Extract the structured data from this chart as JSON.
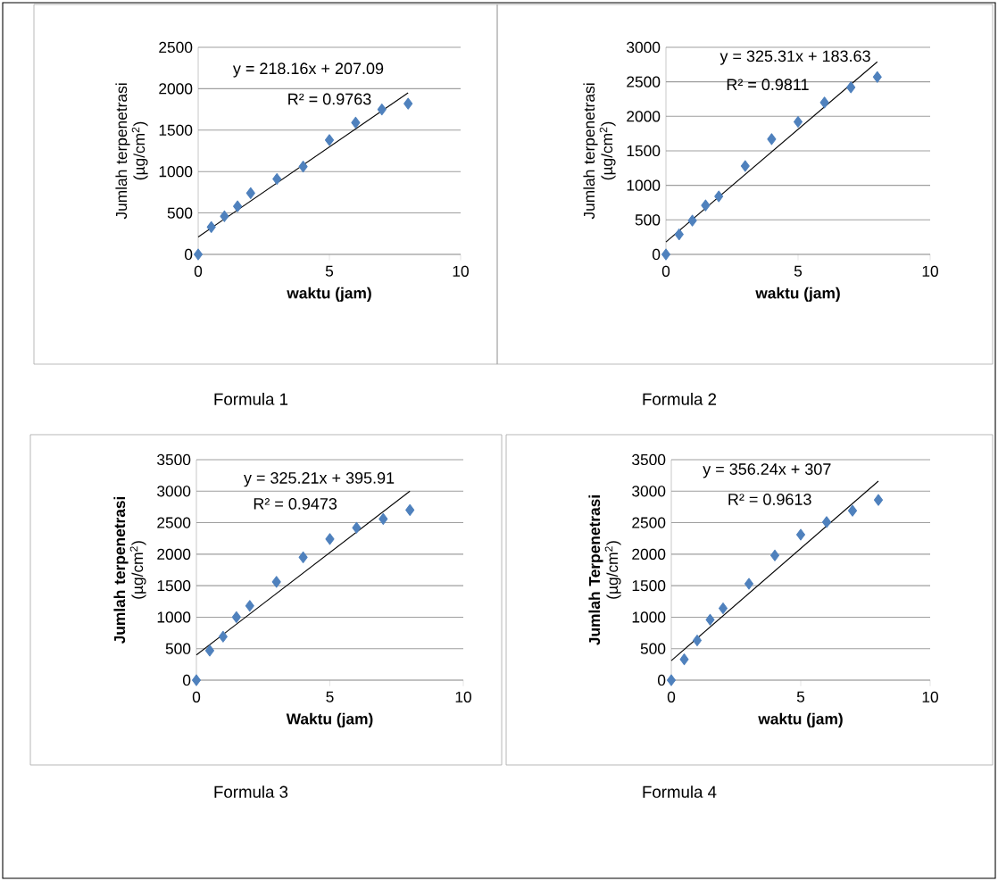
{
  "chart_data": [
    {
      "type": "scatter",
      "title": "Formula 1",
      "xlabel": "waktu (jam)",
      "ylabel": "Jumlah terpenetrasi (µg/cm$^{2}$)",
      "xlim": [
        0,
        10
      ],
      "ylim": [
        0,
        2500
      ],
      "xticks": [
        0,
        5,
        10
      ],
      "yticks": [
        0,
        500,
        1000,
        1500,
        2000,
        2500
      ],
      "grid": "y",
      "marker": "diamond",
      "annotations": [
        "y = 218.16x + 207.09",
        "R² = 0.9763"
      ],
      "series": [
        {
          "color": "#4f81bd",
          "x": [
            0,
            0.5,
            1,
            1.5,
            2,
            3,
            4,
            5,
            6,
            7,
            8
          ],
          "values": [
            0,
            330,
            460,
            580,
            740,
            910,
            1060,
            1380,
            1590,
            1750,
            1820
          ]
        },
        {
          "type": "line",
          "color": "#000000",
          "marker": "none",
          "x": [
            0,
            8
          ],
          "values": [
            210,
            1950
          ]
        }
      ]
    },
    {
      "type": "scatter",
      "title": "Formula 2",
      "xlabel": "waktu (jam)",
      "ylabel": "Jumlah terpenetrasi (µg/cm$^{2}$)",
      "xlim": [
        0,
        10
      ],
      "ylim": [
        0,
        3000
      ],
      "xticks": [
        0,
        5,
        10
      ],
      "yticks": [
        0,
        500,
        1000,
        1500,
        2000,
        2500,
        3000
      ],
      "grid": "y",
      "marker": "diamond",
      "annotations": [
        "y = 325.31x + 183.63",
        "R² = 0.9811"
      ],
      "series": [
        {
          "color": "#4f81bd",
          "x": [
            0,
            0.5,
            1,
            1.5,
            2,
            3,
            4,
            5,
            6,
            7,
            8
          ],
          "values": [
            0,
            290,
            490,
            710,
            840,
            1280,
            1670,
            1920,
            2200,
            2420,
            2570
          ]
        },
        {
          "type": "line",
          "color": "#000000",
          "marker": "none",
          "x": [
            0,
            8
          ],
          "values": [
            180,
            2790
          ]
        }
      ]
    },
    {
      "type": "scatter",
      "title": "Formula 3",
      "xlabel": "Waktu (jam)",
      "ylabel": "**Jumlah terpenetrasi** (µg/cm$^{2}$)",
      "xlim": [
        0,
        10
      ],
      "ylim": [
        0,
        3500
      ],
      "xticks": [
        0,
        5,
        10
      ],
      "yticks": [
        0,
        500,
        1000,
        1500,
        2000,
        2500,
        3000,
        3500
      ],
      "grid": "y",
      "marker": "diamond",
      "annotations": [
        "y = 325.21x + 395.91",
        "R² = 0.9473"
      ],
      "series": [
        {
          "color": "#4f81bd",
          "x": [
            0,
            0.5,
            1,
            1.5,
            2,
            3,
            4,
            5,
            6,
            7,
            8
          ],
          "values": [
            0,
            470,
            690,
            1000,
            1180,
            1560,
            1950,
            2240,
            2420,
            2560,
            2700
          ]
        },
        {
          "type": "line",
          "color": "#000000",
          "marker": "none",
          "x": [
            0,
            8
          ],
          "values": [
            400,
            3000
          ]
        }
      ]
    },
    {
      "type": "scatter",
      "title": "Formula 4",
      "xlabel": "waktu (jam)",
      "ylabel": "**Jumlah Terpenetrasi** (µg/cm$^{2}$)",
      "xlim": [
        0,
        10
      ],
      "ylim": [
        0,
        3500
      ],
      "xticks": [
        0,
        5,
        10
      ],
      "yticks": [
        0,
        500,
        1000,
        1500,
        2000,
        2500,
        3000,
        3500
      ],
      "grid": "y",
      "marker": "diamond",
      "annotations": [
        "y = 356.24x + 307",
        "R² = 0.9613"
      ],
      "series": [
        {
          "color": "#4f81bd",
          "x": [
            0,
            0.5,
            1,
            1.5,
            2,
            3,
            4,
            5,
            6,
            7,
            8
          ],
          "values": [
            0,
            330,
            630,
            960,
            1140,
            1530,
            1980,
            2310,
            2510,
            2690,
            2860
          ]
        },
        {
          "type": "line",
          "color": "#000000",
          "marker": "none",
          "x": [
            0,
            8
          ],
          "values": [
            310,
            3160
          ]
        }
      ]
    }
  ]
}
